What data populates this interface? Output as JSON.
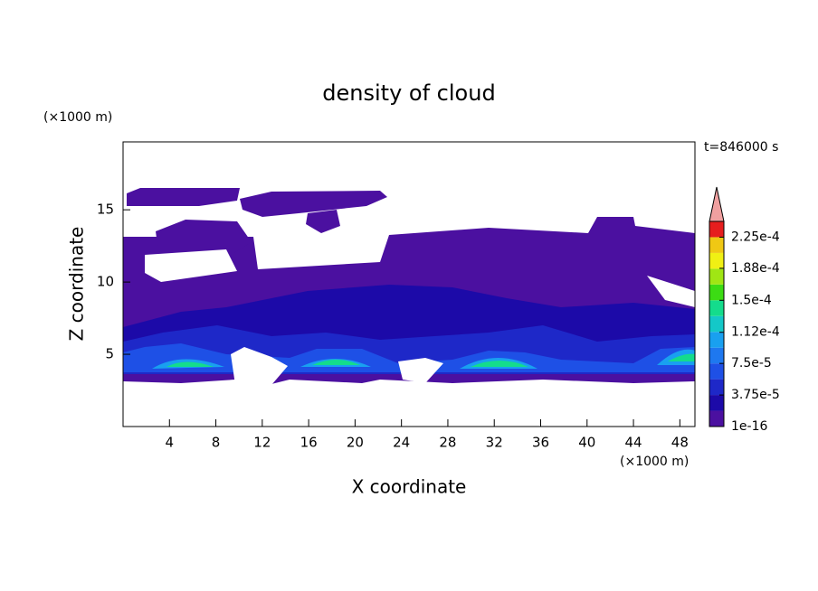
{
  "chart_data": {
    "type": "contour",
    "title": "density of cloud",
    "x_label": "X coordinate",
    "y_label": "Z coordinate",
    "x_unit": "(×1000 m)",
    "y_unit": "(×1000 m)",
    "time_label": "t=846000 s",
    "xlim": [
      0,
      49.3
    ],
    "ylim": [
      0,
      19.7
    ],
    "xticks": [
      4,
      8,
      12,
      16,
      20,
      24,
      28,
      32,
      36,
      40,
      44,
      48
    ],
    "yticks": [
      5,
      10,
      15
    ],
    "colorbar": {
      "clim": [
        0,
        0.00024375
      ],
      "colors": [
        "#4b10a0",
        "#1c0aa8",
        "#1e28c8",
        "#1e50e6",
        "#1e78f0",
        "#19a0f0",
        "#14c8c8",
        "#14dc8c",
        "#3cdc14",
        "#a0e614",
        "#f0f014",
        "#f0c814",
        "#f09614",
        "#f05014",
        "#e61e1e"
      ],
      "extend_color": "#f0a0a0",
      "ticks": [
        {
          "value": 1e-16,
          "label": "1e-16"
        },
        {
          "value": 3.75e-05,
          "label": "3.75e-5"
        },
        {
          "value": 7.5e-05,
          "label": "7.5e-5"
        },
        {
          "value": 0.000112,
          "label": "1.12e-4"
        },
        {
          "value": 0.00015,
          "label": "1.5e-4"
        },
        {
          "value": 0.000188,
          "label": "1.88e-4"
        },
        {
          "value": 0.000225,
          "label": "2.25e-4"
        }
      ]
    }
  }
}
